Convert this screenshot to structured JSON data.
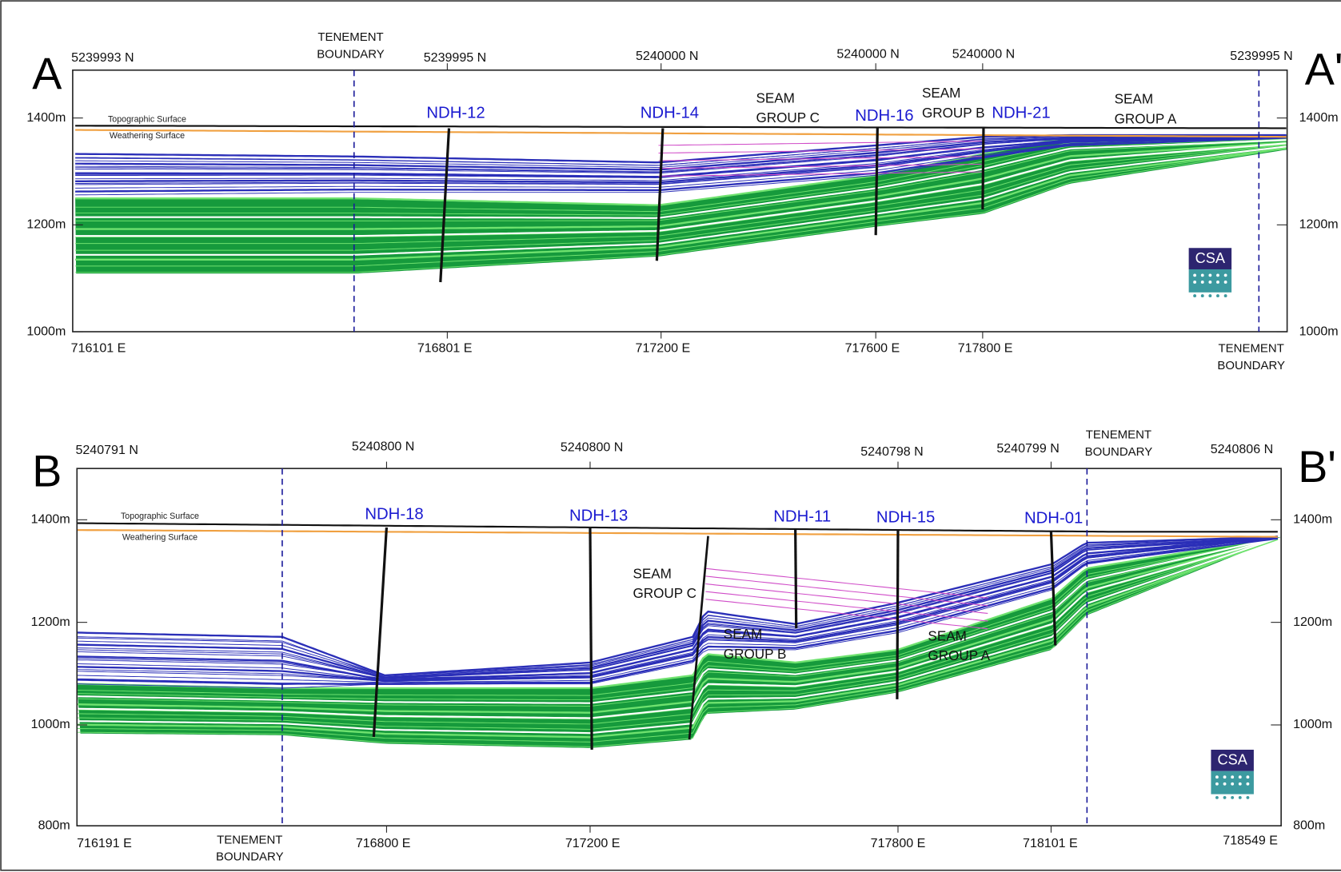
{
  "panels": [
    {
      "section_start": "A",
      "section_end": "A'",
      "northings": [
        "5239993 N",
        "5239995 N",
        "5240000 N",
        "5240000 N",
        "5240000 N",
        "5239995 N"
      ],
      "eastings": [
        "716101 E",
        "716801 E",
        "717200 E",
        "717600 E",
        "717800 E"
      ],
      "elevations": [
        "1400m",
        "1200m",
        "1000m"
      ],
      "tenement_boundary": [
        "TENEMENT",
        "BOUNDARY"
      ],
      "drillholes": [
        "NDH-12",
        "NDH-14",
        "NDH-16",
        "NDH-21"
      ],
      "seam_groups": [
        [
          "SEAM",
          "GROUP C"
        ],
        [
          "SEAM",
          "GROUP B"
        ],
        [
          "SEAM",
          "GROUP A"
        ]
      ],
      "surfaces": [
        "Topographic Surface",
        "Weathering Surface"
      ],
      "logo": "CSA"
    },
    {
      "section_start": "B",
      "section_end": "B'",
      "northings": [
        "5240791 N",
        "5240800 N",
        "5240800 N",
        "5240798 N",
        "5240799 N",
        "5240806 N"
      ],
      "eastings": [
        "716191 E",
        "716800 E",
        "717200 E",
        "717800 E",
        "718101 E",
        "718549 E"
      ],
      "elevations": [
        "1400m",
        "1200m",
        "1000m",
        "800m"
      ],
      "tenement_boundary": [
        "TENEMENT",
        "BOUNDARY"
      ],
      "drillholes": [
        "NDH-18",
        "NDH-13",
        "NDH-11",
        "NDH-15",
        "NDH-01"
      ],
      "seam_groups": [
        [
          "SEAM",
          "GROUP C"
        ],
        [
          "SEAM",
          "GROUP B"
        ],
        [
          "SEAM",
          "GROUP A"
        ]
      ],
      "surfaces": [
        "Topographic Surface",
        "Weathering Surface"
      ],
      "logo": "CSA"
    }
  ]
}
